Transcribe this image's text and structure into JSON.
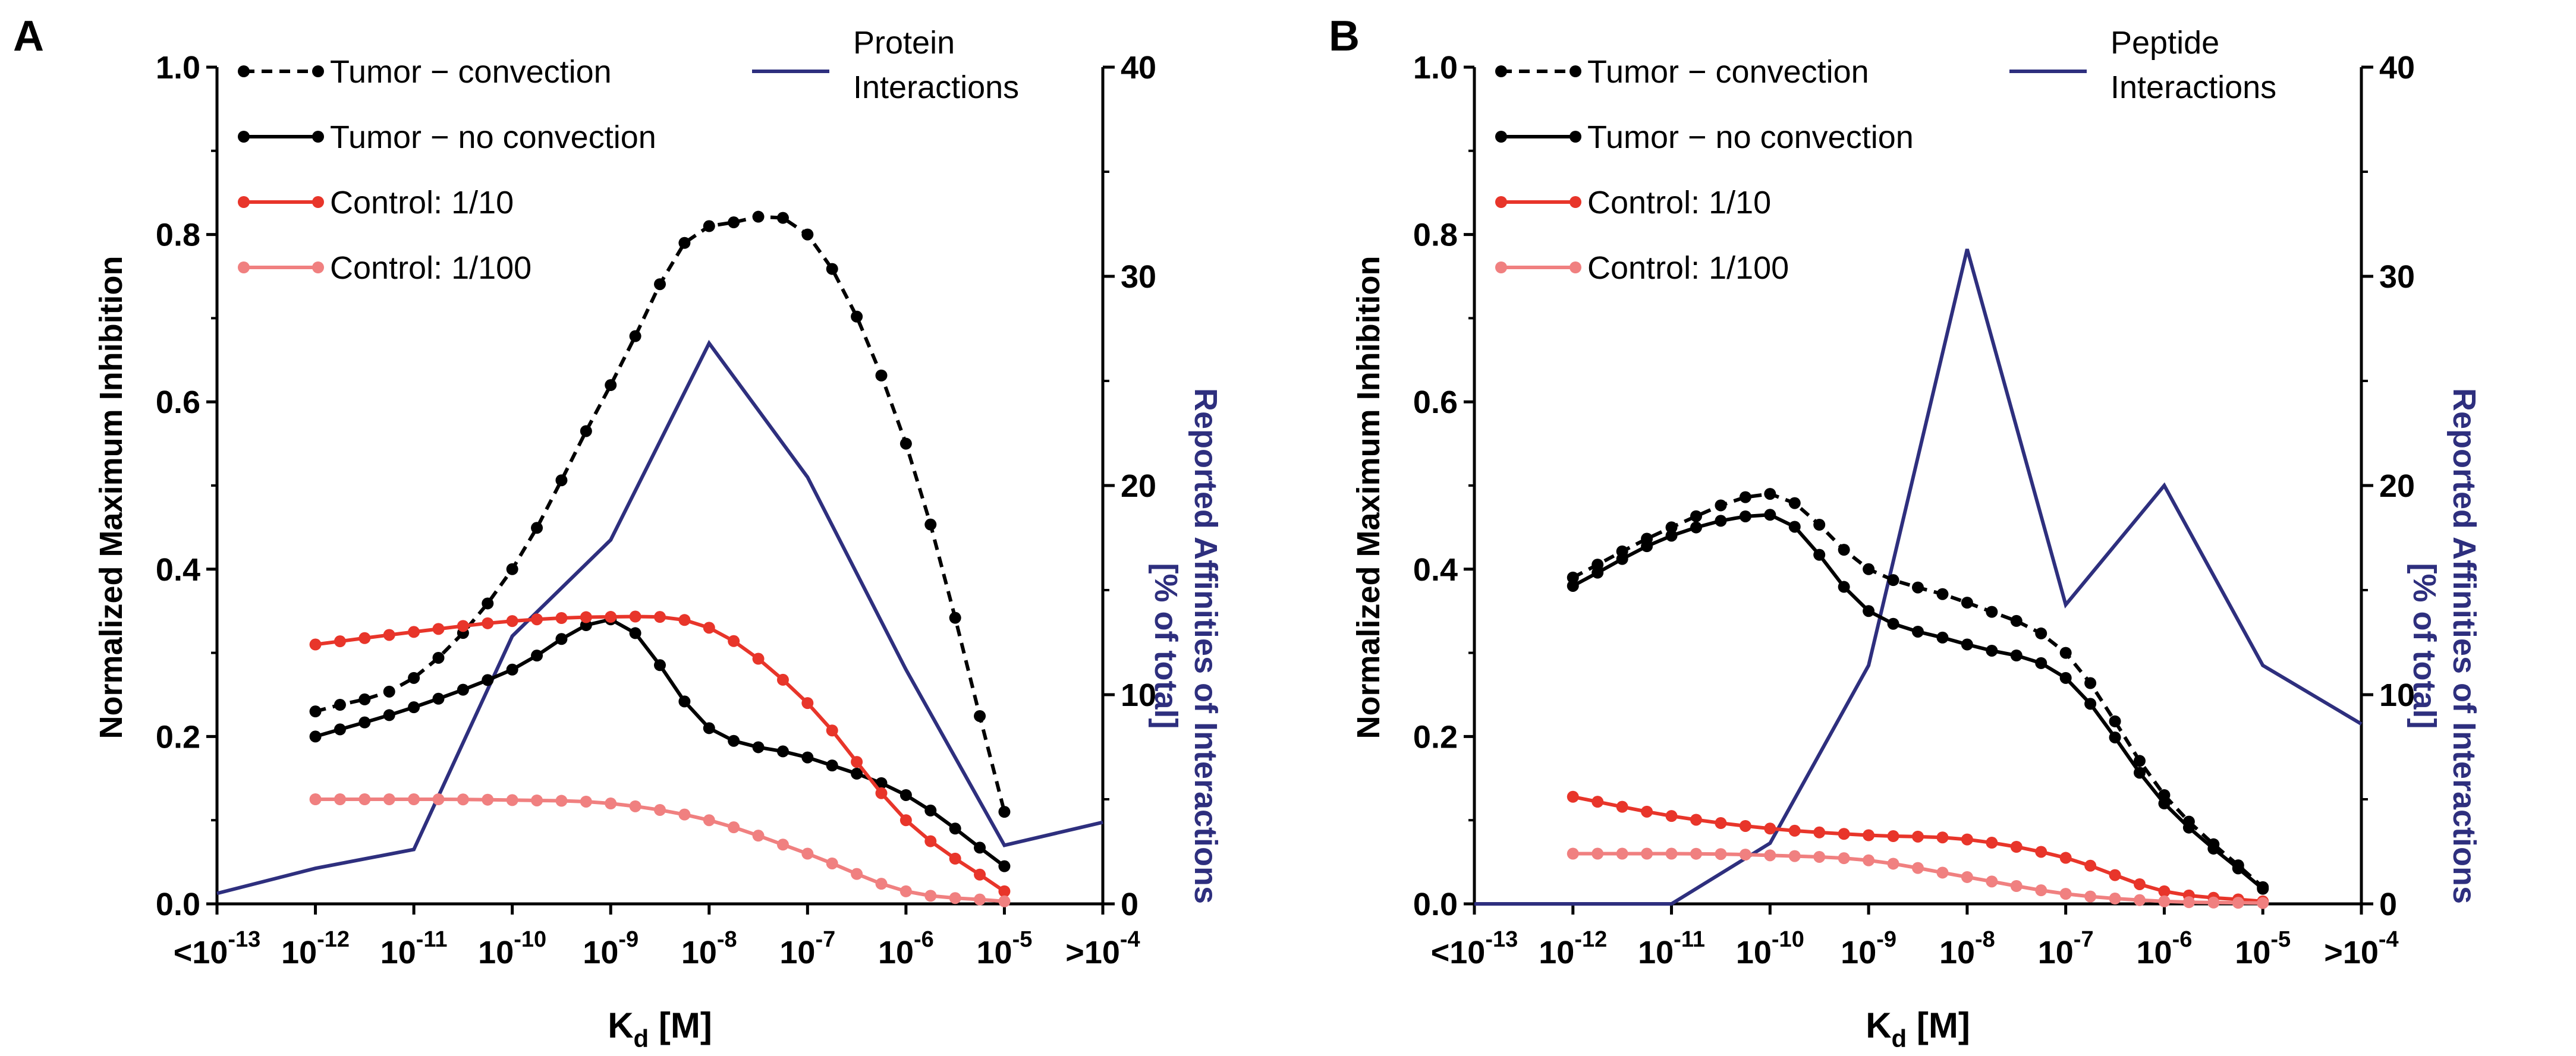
{
  "colors": {
    "tumor_convection": "#000000",
    "tumor_no_convection": "#000000",
    "control_1_10": "#e8352a",
    "control_1_100": "#f08080",
    "interactions": "#2e2f7e"
  },
  "x_tick_labels": [
    {
      "base": "<10",
      "exp": "-13"
    },
    {
      "base": "10",
      "exp": "-12"
    },
    {
      "base": "10",
      "exp": "-11"
    },
    {
      "base": "10",
      "exp": "-10"
    },
    {
      "base": "10",
      "exp": "-9"
    },
    {
      "base": "10",
      "exp": "-8"
    },
    {
      "base": "10",
      "exp": "-7"
    },
    {
      "base": "10",
      "exp": "-6"
    },
    {
      "base": "10",
      "exp": "-5"
    },
    {
      "base": ">10",
      "exp": "-4"
    }
  ],
  "chart_data": [
    {
      "panel": "A",
      "type": "line",
      "title": "",
      "xlabel": {
        "main": "K",
        "sub": "d",
        "rest": " [M]"
      },
      "ylabel": "Normalized Maximum Inhibition",
      "y2label": [
        "Reported Affinities of Interactions",
        "[% of total]"
      ],
      "xlim": [
        -13,
        -4
      ],
      "ylim": [
        0,
        1
      ],
      "y2lim": [
        0,
        40
      ],
      "yticks": [
        "0.0",
        "0.2",
        "0.4",
        "0.6",
        "0.8",
        "1.0"
      ],
      "y2ticks": [
        "0",
        "10",
        "20",
        "30",
        "40"
      ],
      "legend": [
        {
          "label": "Tumor − convection",
          "series": "tumor_convection"
        },
        {
          "label": "Tumor − no convection",
          "series": "tumor_no_convection"
        },
        {
          "label": "Control: 1/10",
          "series": "control_1_10"
        },
        {
          "label": "Control: 1/100",
          "series": "control_1_100"
        }
      ],
      "legend2": [
        "Protein",
        "Interactions"
      ],
      "series": [
        {
          "name": "tumor_convection",
          "dashed": true,
          "x": [
            -12,
            -11,
            -10,
            -9,
            -8,
            -7,
            -6,
            -5
          ],
          "y": [
            0.23,
            0.27,
            0.4,
            0.62,
            0.81,
            0.8,
            0.55,
            0.11
          ]
        },
        {
          "name": "tumor_no_convection",
          "dashed": false,
          "x": [
            -12,
            -11,
            -10,
            -9,
            -8,
            -7,
            -6,
            -5
          ],
          "y": [
            0.2,
            0.235,
            0.28,
            0.34,
            0.21,
            0.175,
            0.13,
            0.045
          ]
        },
        {
          "name": "control_1_10",
          "dashed": false,
          "x": [
            -12,
            -11,
            -10,
            -9,
            -8,
            -7,
            -6,
            -5
          ],
          "y": [
            0.31,
            0.325,
            0.338,
            0.343,
            0.33,
            0.24,
            0.1,
            0.015
          ]
        },
        {
          "name": "control_1_100",
          "dashed": false,
          "x": [
            -12,
            -11,
            -10,
            -9,
            -8,
            -7,
            -6,
            -5
          ],
          "y": [
            0.125,
            0.125,
            0.124,
            0.12,
            0.1,
            0.06,
            0.015,
            0.003
          ]
        }
      ],
      "interactions": {
        "x": [
          -13,
          -12,
          -11,
          -10,
          -9,
          -8,
          -7,
          -6,
          -5,
          -4
        ],
        "y": [
          0.5,
          1.7,
          2.6,
          12.8,
          17.4,
          26.8,
          20.4,
          11.2,
          2.8,
          3.9
        ]
      }
    },
    {
      "panel": "B",
      "type": "line",
      "title": "",
      "xlabel": {
        "main": "K",
        "sub": "d",
        "rest": " [M]"
      },
      "ylabel": "Normalized Maximum Inhibition",
      "y2label": [
        "Reported Affinities of Interactions",
        "[% of total]"
      ],
      "xlim": [
        -13,
        -4
      ],
      "ylim": [
        0,
        1
      ],
      "y2lim": [
        0,
        40
      ],
      "yticks": [
        "0.0",
        "0.2",
        "0.4",
        "0.6",
        "0.8",
        "1.0"
      ],
      "y2ticks": [
        "0",
        "10",
        "20",
        "30",
        "40"
      ],
      "legend": [
        {
          "label": "Tumor − convection",
          "series": "tumor_convection"
        },
        {
          "label": "Tumor − no convection",
          "series": "tumor_no_convection"
        },
        {
          "label": "Control: 1/10",
          "series": "control_1_10"
        },
        {
          "label": "Control: 1/100",
          "series": "control_1_100"
        }
      ],
      "legend2": [
        "Peptide",
        "Interactions"
      ],
      "series": [
        {
          "name": "tumor_convection",
          "dashed": true,
          "x": [
            -12,
            -11,
            -10,
            -9,
            -8,
            -7,
            -6,
            -5
          ],
          "y": [
            0.39,
            0.45,
            0.49,
            0.4,
            0.36,
            0.3,
            0.13,
            0.02
          ]
        },
        {
          "name": "tumor_no_convection",
          "dashed": false,
          "x": [
            -12,
            -11,
            -10,
            -9,
            -8,
            -7,
            -6,
            -5
          ],
          "y": [
            0.38,
            0.44,
            0.465,
            0.35,
            0.31,
            0.27,
            0.12,
            0.018
          ]
        },
        {
          "name": "control_1_10",
          "dashed": false,
          "x": [
            -12,
            -11,
            -10,
            -9,
            -8,
            -7,
            -6,
            -5
          ],
          "y": [
            0.128,
            0.105,
            0.09,
            0.082,
            0.077,
            0.055,
            0.015,
            0.003
          ]
        },
        {
          "name": "control_1_100",
          "dashed": false,
          "x": [
            -12,
            -11,
            -10,
            -9,
            -8,
            -7,
            -6,
            -5
          ],
          "y": [
            0.06,
            0.06,
            0.058,
            0.052,
            0.032,
            0.012,
            0.003,
            0.001
          ]
        }
      ],
      "interactions": {
        "x": [
          -13,
          -12,
          -11,
          -10,
          -9,
          -8,
          -7,
          -6,
          -5,
          -4
        ],
        "y": [
          0,
          0,
          0,
          2.9,
          11.4,
          31.3,
          14.3,
          20.0,
          11.4,
          8.6
        ]
      }
    }
  ]
}
